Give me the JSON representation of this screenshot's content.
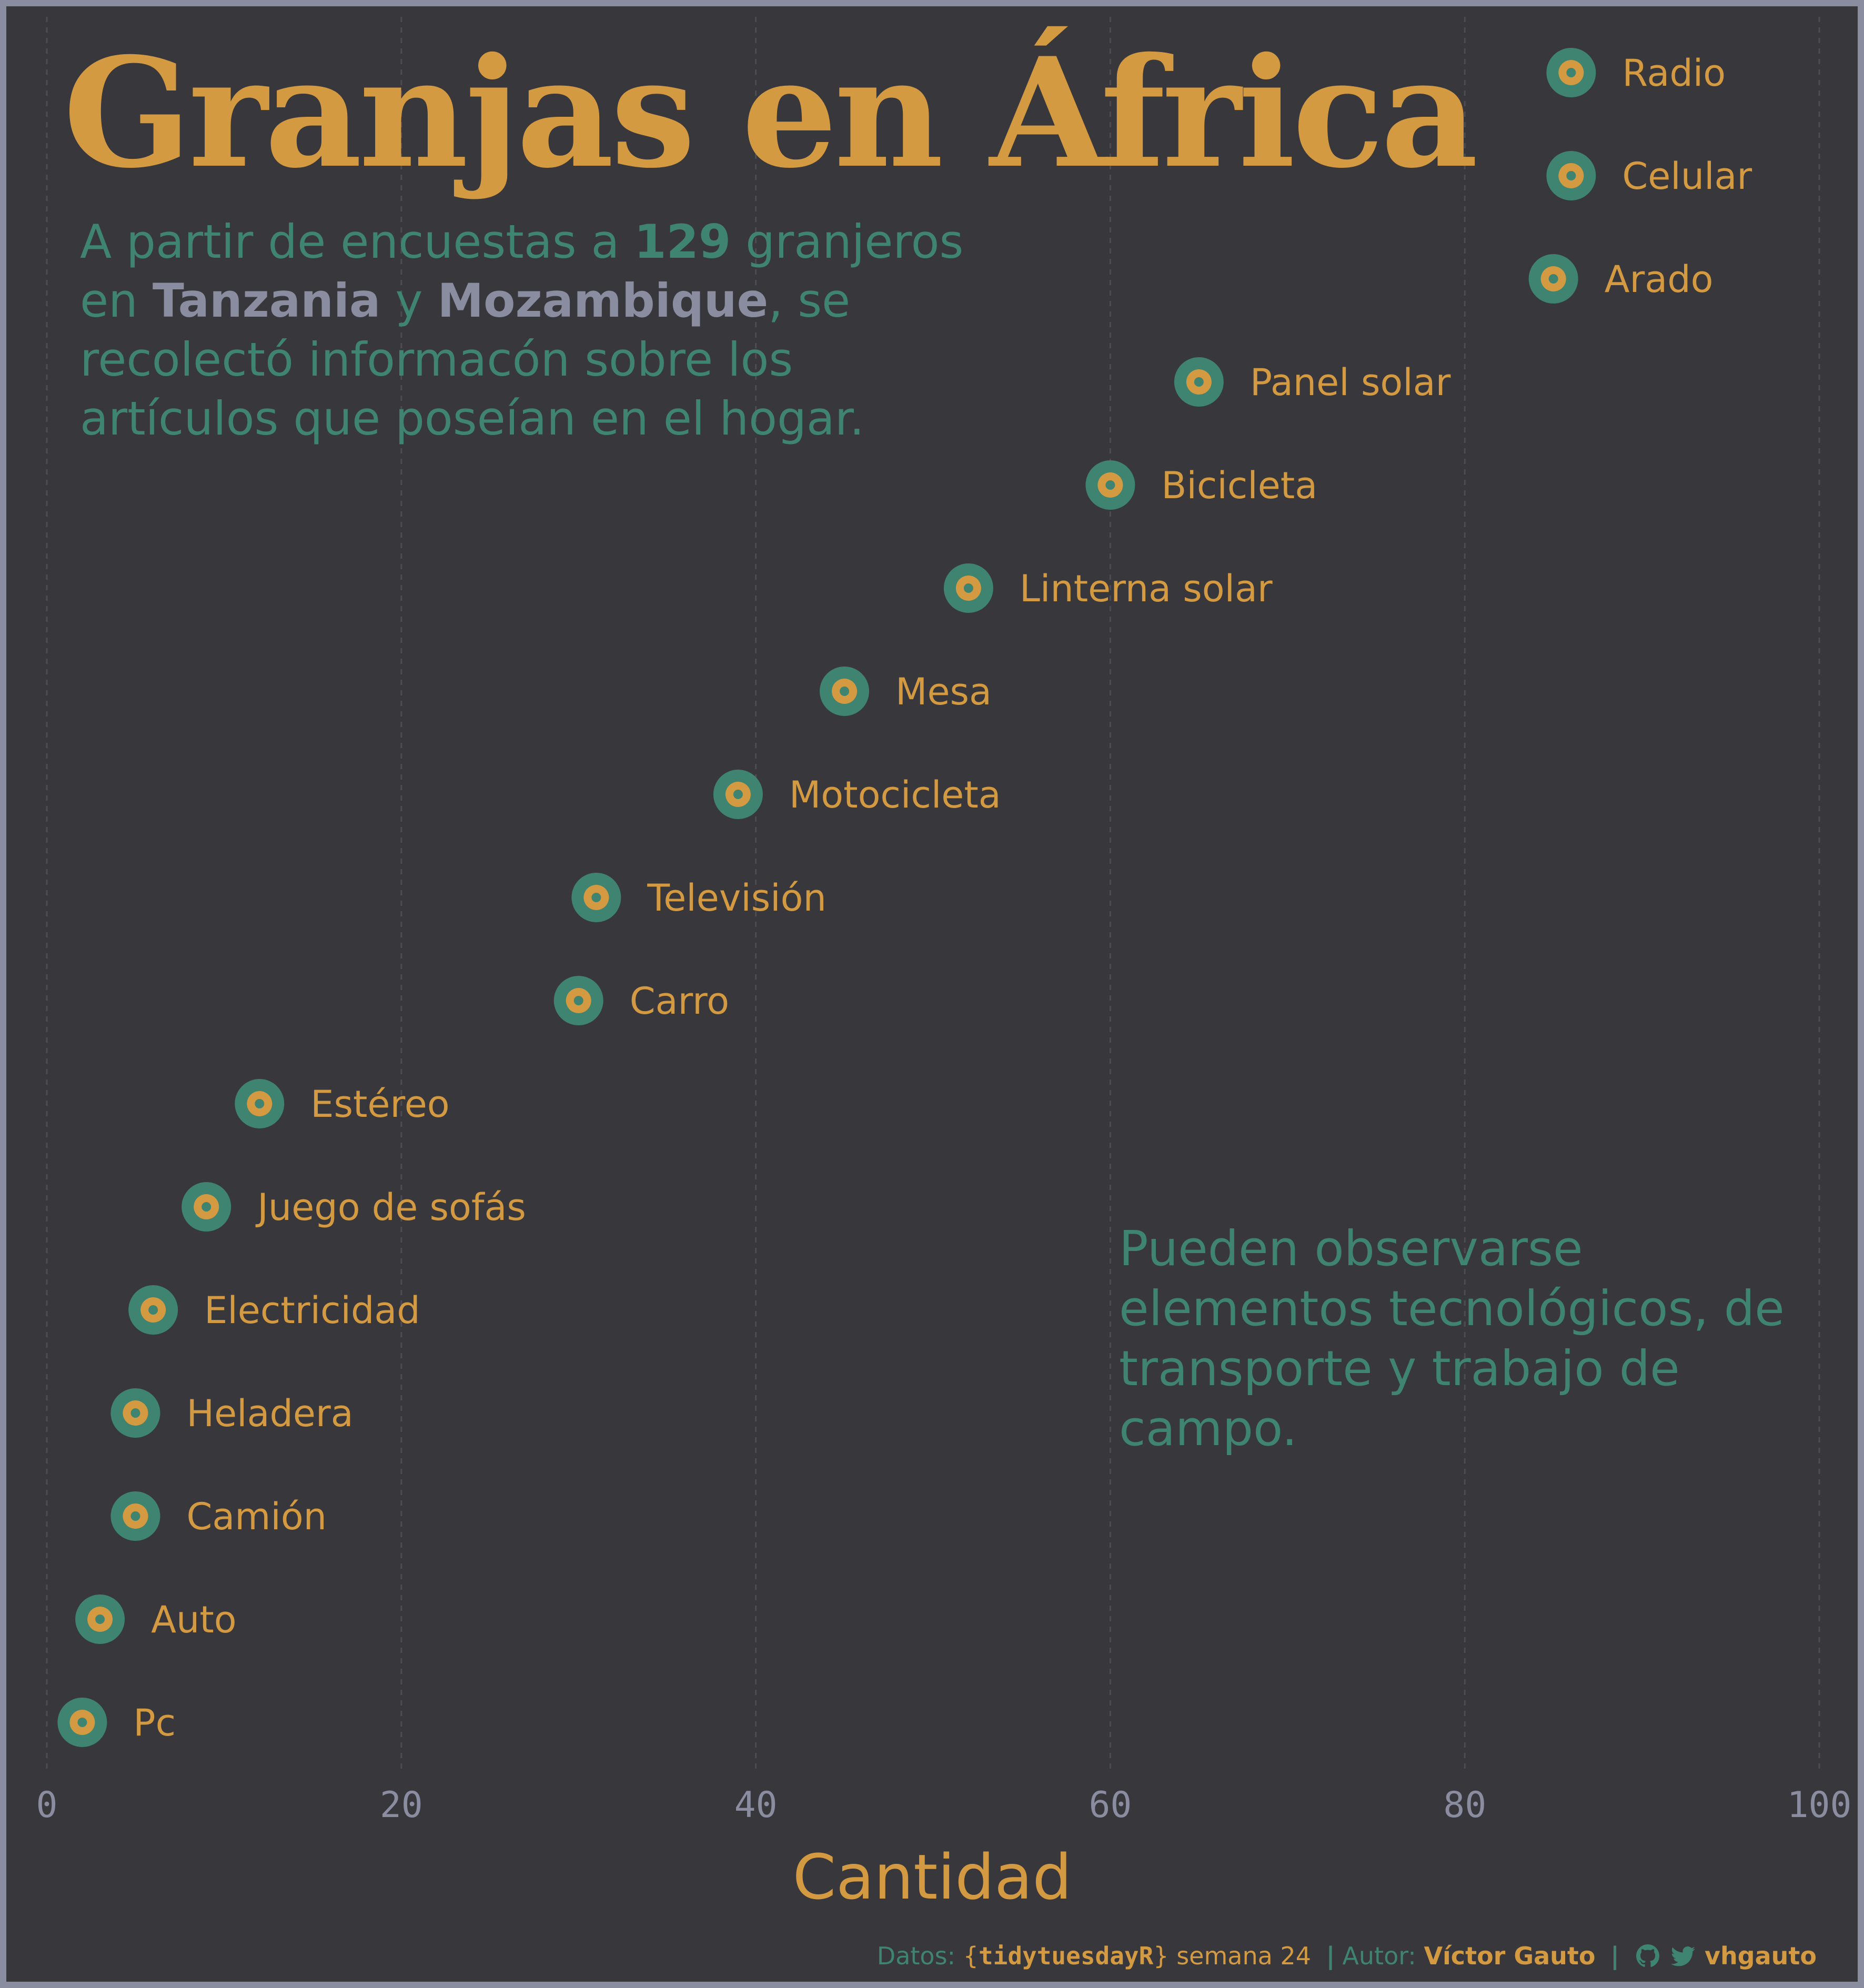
{
  "title": "Granjas en África",
  "subtitle": {
    "p1": "A partir de encuestas a ",
    "count": "129",
    "p2": " granjeros en ",
    "country1": "Tanzania",
    "p3": " y ",
    "country2": "Mozambique",
    "p4": ", se recolectó informacón sobre los artículos que poseían en el hogar."
  },
  "annotation": "Pueden observarse elementos tecnológicos, de transporte y trabajo de campo.",
  "caption": {
    "datos_label": "Datos:",
    "brace_open": "{",
    "source": "tidytuesdayR",
    "brace_close": "}",
    "week": "semana 24",
    "sep1": "|",
    "autor_label": "Autor:",
    "author": "Víctor Gauto",
    "sep2": "|",
    "github_icon": "github-icon",
    "twitter_icon": "twitter-icon",
    "handle": "vhgauto"
  },
  "colors": {
    "background": "#38373c",
    "border": "#8a8ca0",
    "gold": "#d49a42",
    "teal": "#3f8470",
    "gray": "#8a8ca0"
  },
  "chart_data": {
    "type": "scatter",
    "xlabel": "Cantidad",
    "ylabel": "",
    "xlim": [
      0,
      100
    ],
    "xticks": [
      "0",
      "20",
      "40",
      "60",
      "80",
      "100"
    ],
    "grid": "vertical dashed",
    "items": [
      {
        "label": "Radio",
        "x": 86
      },
      {
        "label": "Celular",
        "x": 86
      },
      {
        "label": "Arado",
        "x": 85
      },
      {
        "label": "Panel solar",
        "x": 65
      },
      {
        "label": "Bicicleta",
        "x": 60
      },
      {
        "label": "Linterna solar",
        "x": 52
      },
      {
        "label": "Mesa",
        "x": 45
      },
      {
        "label": "Motocicleta",
        "x": 39
      },
      {
        "label": "Televisión",
        "x": 31
      },
      {
        "label": "Carro",
        "x": 30
      },
      {
        "label": "Estéreo",
        "x": 12
      },
      {
        "label": "Juego de sofás",
        "x": 9
      },
      {
        "label": "Electricidad",
        "x": 6
      },
      {
        "label": "Heladera",
        "x": 5
      },
      {
        "label": "Camión",
        "x": 5
      },
      {
        "label": "Auto",
        "x": 3
      },
      {
        "label": "Pc",
        "x": 2
      }
    ]
  }
}
